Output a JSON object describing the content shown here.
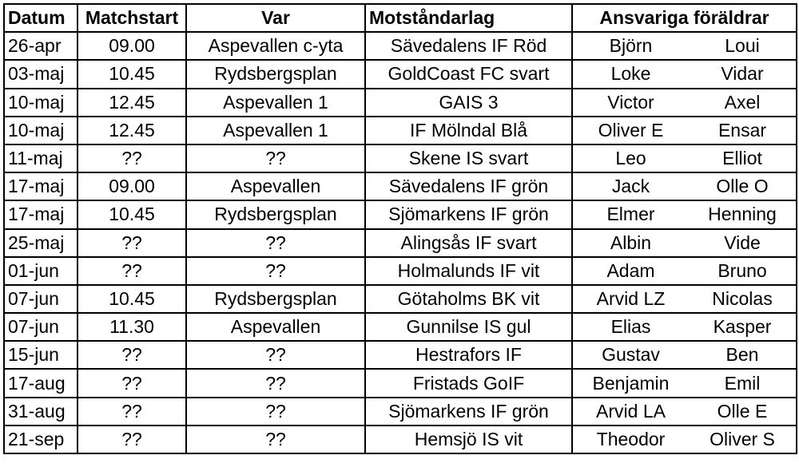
{
  "headers": {
    "datum": "Datum",
    "matchstart": "Matchstart",
    "var": "Var",
    "motstandarlag": "Motståndarlag",
    "foraldrar": "Ansvariga föräldrar"
  },
  "rows": [
    {
      "datum": "26-apr",
      "start": "09.00",
      "var": "Aspevallen c-yta",
      "lag": "Sävedalens IF Röd",
      "p1": "Björn",
      "p2": "Loui"
    },
    {
      "datum": "03-maj",
      "start": "10.45",
      "var": "Rydsbergsplan",
      "lag": "GoldCoast FC svart",
      "p1": "Loke",
      "p2": "Vidar"
    },
    {
      "datum": "10-maj",
      "start": "12.45",
      "var": "Aspevallen 1",
      "lag": "GAIS 3",
      "p1": "Victor",
      "p2": "Axel"
    },
    {
      "datum": "10-maj",
      "start": "12.45",
      "var": "Aspevallen 1",
      "lag": "IF Mölndal Blå",
      "p1": "Oliver E",
      "p2": "Ensar"
    },
    {
      "datum": "11-maj",
      "start": "??",
      "var": "??",
      "lag": "Skene IS svart",
      "p1": "Leo",
      "p2": "Elliot"
    },
    {
      "datum": "17-maj",
      "start": "09.00",
      "var": "Aspevallen",
      "lag": "Sävedalens IF grön",
      "p1": "Jack",
      "p2": "Olle O"
    },
    {
      "datum": "17-maj",
      "start": "10.45",
      "var": "Rydsbergsplan",
      "lag": "Sjömarkens IF grön",
      "p1": "Elmer",
      "p2": "Henning"
    },
    {
      "datum": "25-maj",
      "start": "??",
      "var": "??",
      "lag": "Alingsås IF svart",
      "p1": "Albin",
      "p2": "Vide"
    },
    {
      "datum": "01-jun",
      "start": "??",
      "var": "??",
      "lag": "Holmalunds IF vit",
      "p1": "Adam",
      "p2": "Bruno"
    },
    {
      "datum": "07-jun",
      "start": "10.45",
      "var": "Rydsbergsplan",
      "lag": "Götaholms BK vit",
      "p1": "Arvid LZ",
      "p2": "Nicolas"
    },
    {
      "datum": "07-jun",
      "start": "11.30",
      "var": "Aspevallen",
      "lag": "Gunnilse IS gul",
      "p1": "Elias",
      "p2": "Kasper"
    },
    {
      "datum": "15-jun",
      "start": "??",
      "var": "??",
      "lag": "Hestrafors IF",
      "p1": "Gustav",
      "p2": "Ben"
    },
    {
      "datum": "17-aug",
      "start": "??",
      "var": "??",
      "lag": "Fristads GoIF",
      "p1": "Benjamin",
      "p2": "Emil"
    },
    {
      "datum": "31-aug",
      "start": "??",
      "var": "??",
      "lag": "Sjömarkens IF grön",
      "p1": "Arvid LA",
      "p2": "Olle E"
    },
    {
      "datum": "21-sep",
      "start": "??",
      "var": "??",
      "lag": "Hemsjö IS vit",
      "p1": "Theodor",
      "p2": "Oliver S"
    }
  ]
}
